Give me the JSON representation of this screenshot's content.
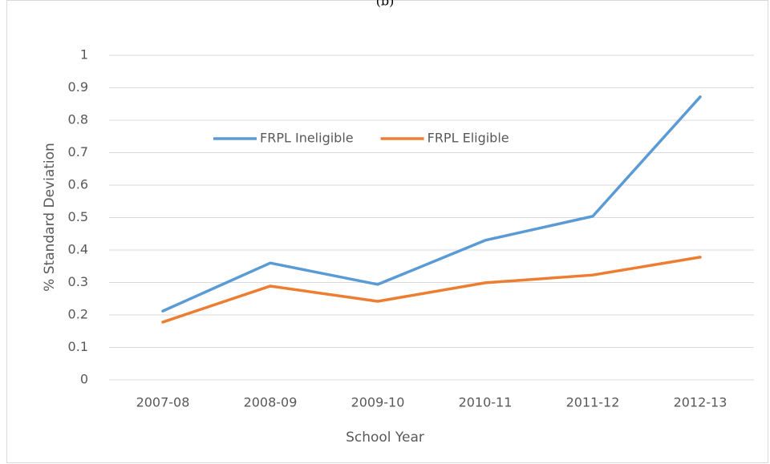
{
  "chart_data": {
    "type": "line",
    "title": "(b)",
    "x_label": "School Year",
    "y_label": "% Standard Deviation",
    "categories": [
      "2007-08",
      "2008-09",
      "2009-10",
      "2010-11",
      "2011-12",
      "2012-13"
    ],
    "series": [
      {
        "name": "FRPL Ineligible",
        "color": "#5b9bd5",
        "values": [
          0.212,
          0.36,
          0.294,
          0.43,
          0.504,
          0.872
        ]
      },
      {
        "name": "FRPL Eligible",
        "color": "#ed7d31",
        "values": [
          0.178,
          0.289,
          0.242,
          0.299,
          0.323,
          0.378
        ]
      }
    ],
    "ylim": [
      0,
      1
    ],
    "yticks": [
      0,
      0.1,
      0.2,
      0.3,
      0.4,
      0.5,
      0.6,
      0.7,
      0.8,
      0.9,
      1
    ],
    "grid": true,
    "legend": "upper left"
  }
}
